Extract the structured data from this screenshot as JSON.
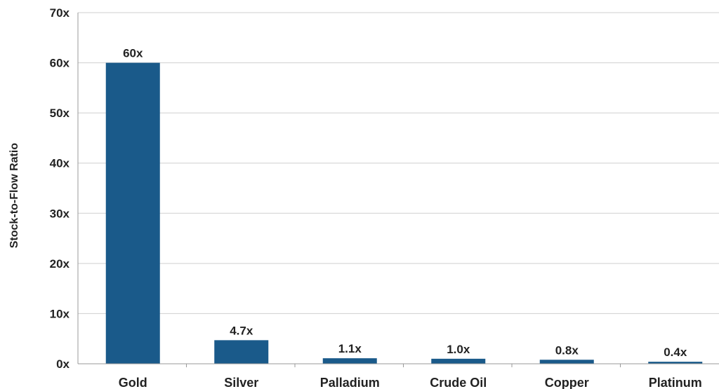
{
  "chart_data": {
    "type": "bar",
    "title": "",
    "xlabel": "",
    "ylabel": "Stock-to-Flow Ratio",
    "categories": [
      "Gold",
      "Silver",
      "Palladium",
      "Crude Oil",
      "Copper",
      "Platinum"
    ],
    "values": [
      60,
      4.7,
      1.1,
      1.0,
      0.8,
      0.4
    ],
    "data_labels": [
      "60x",
      "4.7x",
      "1.1x",
      "1.0x",
      "0.8x",
      "0.4x"
    ],
    "ylim": [
      0,
      70
    ],
    "yticks": [
      0,
      10,
      20,
      30,
      40,
      50,
      60,
      70
    ],
    "ytick_labels": [
      "0x",
      "10x",
      "20x",
      "30x",
      "40x",
      "50x",
      "60x",
      "70x"
    ],
    "grid": true,
    "legend": "none",
    "colors": {
      "bar": "#1a5a8a",
      "grid": "#cfcfcf",
      "axis": "#999999",
      "text": "#222222"
    }
  }
}
